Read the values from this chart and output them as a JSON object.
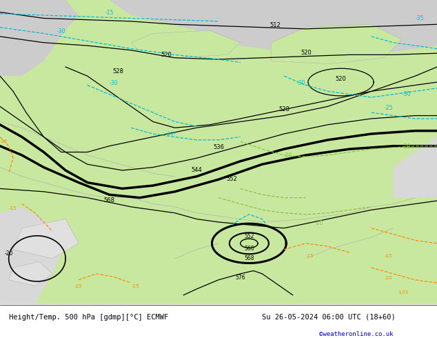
{
  "title_left": "Height/Temp. 500 hPa [gdmp][°C] ECMWF",
  "title_right": "Su 26-05-2024 06:00 UTC (18+60)",
  "watermark": "©weatheronline.co.uk",
  "bg_green": "#c8e8a0",
  "bg_gray": "#cccccc",
  "bg_light_gray": "#d8d8d8",
  "cyan": "#00bcd4",
  "lime": "#8bc34a",
  "orange": "#ff8c00",
  "black": "#000000",
  "blue": "#0000cc",
  "white": "#ffffff",
  "figsize": [
    6.34,
    4.9
  ],
  "dpi": 100
}
